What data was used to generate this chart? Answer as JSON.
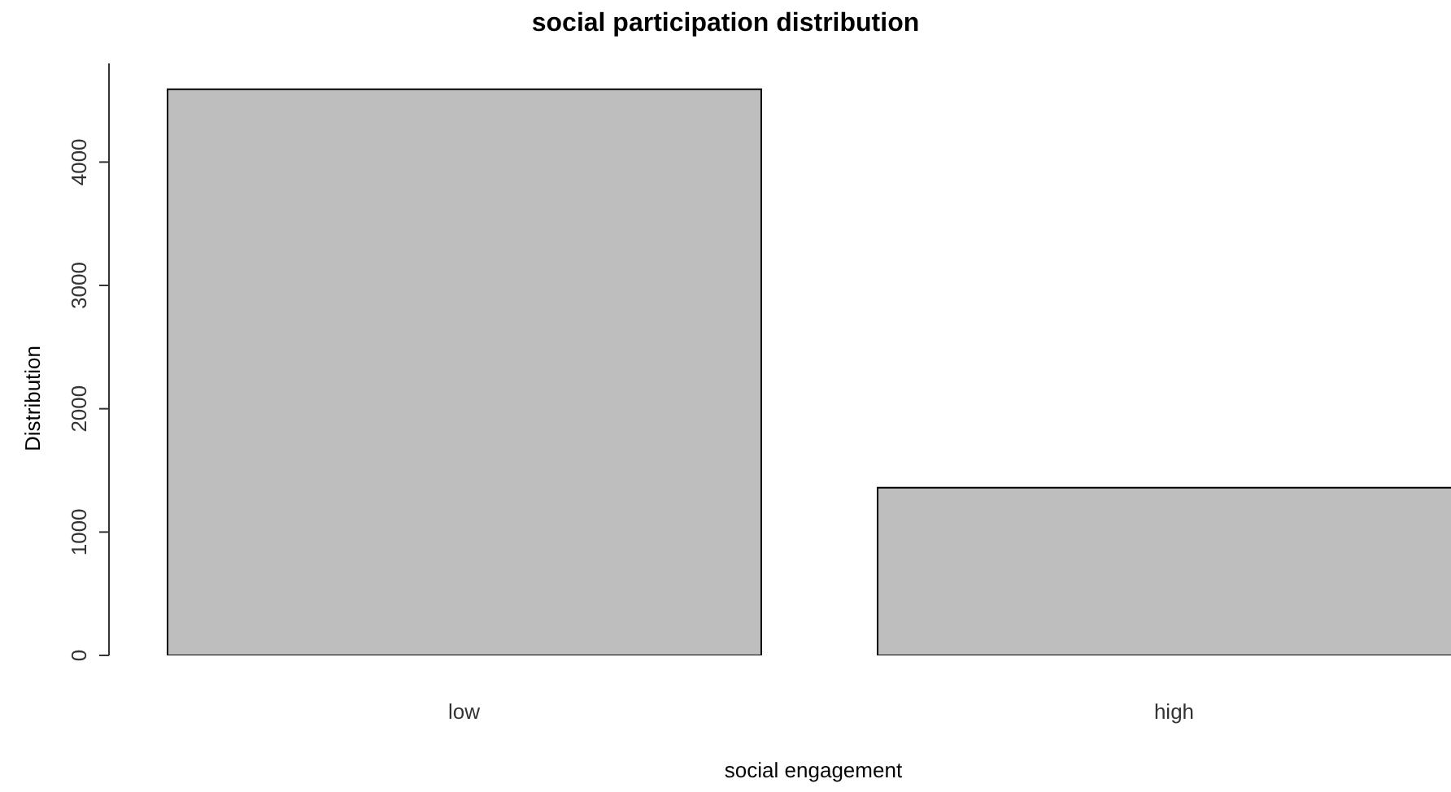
{
  "chart_data": {
    "type": "bar",
    "title": "social participation distribution",
    "xlabel": "social engagement",
    "ylabel": "Distribution",
    "categories": [
      "low",
      "high"
    ],
    "values": [
      4590,
      1360
    ],
    "color": "#bebebe",
    "ylim": [
      0,
      4800
    ],
    "yticks": [
      0,
      1000,
      2000,
      3000,
      4000
    ],
    "grid": false,
    "legend": false
  }
}
